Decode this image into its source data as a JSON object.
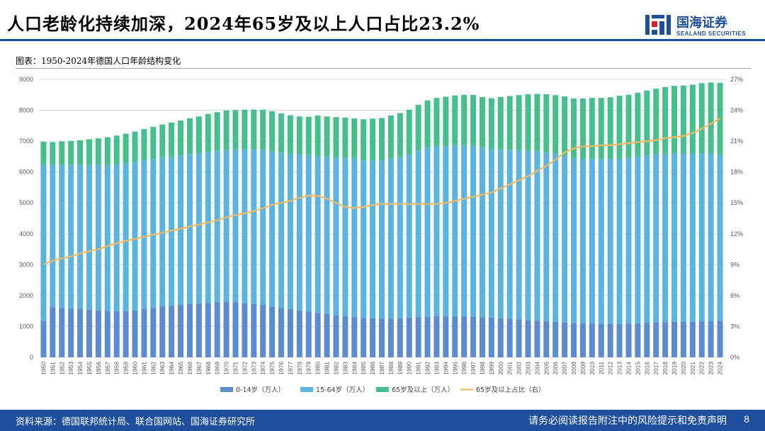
{
  "header": {
    "title": "人口老龄化持续加深，2024年65岁及以上人口占比23.2%",
    "logo_cn": "国海证券",
    "logo_en": "SEALAND SECURITIES"
  },
  "figure": {
    "caption": "图表：1950-2024年德国人口年龄结构变化"
  },
  "footer": {
    "source": "资料来源：德国联邦统计局、联合国网站、国海证券研究所",
    "disclaimer": "请务必阅读报告附注中的风险提示和免责声明",
    "page": "8"
  },
  "colors": {
    "brand": "#1d4f9c",
    "s0_14": "#5b8bd0",
    "s15_64": "#5ab4e2",
    "s65": "#45c08a",
    "line": "#f4b860"
  },
  "chart_data": {
    "type": "bar",
    "stacked": true,
    "title": "",
    "ylim": [
      0,
      9000
    ],
    "yticks": [
      0,
      1000,
      2000,
      3000,
      4000,
      5000,
      6000,
      7000,
      8000,
      9000
    ],
    "y2lim": [
      0,
      27
    ],
    "y2ticks": [
      "0%",
      "3%",
      "6%",
      "9%",
      "12%",
      "15%",
      "18%",
      "21%",
      "24%",
      "27%"
    ],
    "grid": true,
    "legend_position": "bottom",
    "categories": [
      "1950",
      "1951",
      "1952",
      "1953",
      "1954",
      "1955",
      "1956",
      "1957",
      "1958",
      "1959",
      "1960",
      "1961",
      "1962",
      "1963",
      "1964",
      "1965",
      "1966",
      "1967",
      "1968",
      "1969",
      "1970",
      "1971",
      "1972",
      "1973",
      "1974",
      "1975",
      "1976",
      "1977",
      "1978",
      "1979",
      "1980",
      "1981",
      "1982",
      "1983",
      "1984",
      "1985",
      "1986",
      "1987",
      "1988",
      "1989",
      "1990",
      "1991",
      "1992",
      "1993",
      "1994",
      "1995",
      "1996",
      "1997",
      "1998",
      "1999",
      "2000",
      "2001",
      "2002",
      "2003",
      "2004",
      "2005",
      "2006",
      "2007",
      "2008",
      "2009",
      "2010",
      "2011",
      "2012",
      "2013",
      "2014",
      "2015",
      "2016",
      "2017",
      "2018",
      "2019",
      "2020",
      "2021",
      "2022",
      "2023",
      "2024"
    ],
    "series": [
      {
        "name": "0-14岁（万人）",
        "axis": "left",
        "values": [
          1180,
          1620,
          1600,
          1580,
          1560,
          1540,
          1520,
          1510,
          1500,
          1500,
          1520,
          1560,
          1600,
          1650,
          1680,
          1700,
          1720,
          1740,
          1760,
          1780,
          1800,
          1780,
          1760,
          1730,
          1700,
          1650,
          1600,
          1560,
          1520,
          1480,
          1440,
          1400,
          1360,
          1330,
          1300,
          1280,
          1270,
          1260,
          1260,
          1270,
          1290,
          1300,
          1310,
          1320,
          1320,
          1320,
          1320,
          1310,
          1300,
          1290,
          1270,
          1250,
          1230,
          1210,
          1190,
          1170,
          1150,
          1130,
          1110,
          1100,
          1090,
          1080,
          1080,
          1080,
          1090,
          1100,
          1120,
          1130,
          1140,
          1150,
          1150,
          1150,
          1160,
          1170,
          1170
        ]
      },
      {
        "name": "15-64岁（万人）",
        "axis": "left",
        "values": [
          5100,
          4620,
          4620,
          4650,
          4670,
          4690,
          4720,
          4740,
          4760,
          4780,
          4800,
          4820,
          4820,
          4820,
          4820,
          4840,
          4860,
          4870,
          4900,
          4920,
          4930,
          4960,
          4980,
          5000,
          5020,
          5030,
          5030,
          5030,
          5050,
          5070,
          5090,
          5100,
          5110,
          5140,
          5130,
          5100,
          5110,
          5120,
          5180,
          5220,
          5280,
          5400,
          5480,
          5520,
          5520,
          5540,
          5540,
          5540,
          5500,
          5460,
          5460,
          5470,
          5480,
          5500,
          5500,
          5460,
          5420,
          5400,
          5340,
          5330,
          5330,
          5340,
          5340,
          5360,
          5370,
          5400,
          5420,
          5440,
          5450,
          5450,
          5440,
          5440,
          5450,
          5420,
          5380
        ]
      },
      {
        "name": "65岁及以上（万人）",
        "axis": "left",
        "values": [
          700,
          730,
          770,
          780,
          800,
          830,
          850,
          880,
          920,
          960,
          990,
          1010,
          1040,
          1070,
          1100,
          1130,
          1160,
          1190,
          1220,
          1240,
          1260,
          1270,
          1280,
          1290,
          1300,
          1290,
          1270,
          1250,
          1230,
          1240,
          1300,
          1300,
          1310,
          1290,
          1310,
          1330,
          1350,
          1370,
          1390,
          1420,
          1450,
          1480,
          1530,
          1560,
          1600,
          1620,
          1640,
          1650,
          1630,
          1640,
          1700,
          1740,
          1780,
          1810,
          1840,
          1890,
          1920,
          1920,
          1930,
          1950,
          1980,
          1980,
          2000,
          2030,
          2040,
          2070,
          2100,
          2130,
          2160,
          2190,
          2210,
          2240,
          2270,
          2310,
          2340
        ]
      },
      {
        "name": "65岁及以上占比（右）",
        "axis": "right",
        "type": "line",
        "values": [
          9.0,
          9.4,
          9.6,
          9.8,
          10.1,
          10.3,
          10.5,
          10.8,
          11.1,
          11.3,
          11.5,
          11.7,
          11.9,
          12.1,
          12.3,
          12.5,
          12.7,
          12.9,
          13.1,
          13.3,
          13.6,
          13.8,
          14.0,
          14.2,
          14.5,
          14.8,
          15.0,
          15.2,
          15.5,
          15.7,
          15.7,
          15.4,
          15.0,
          14.6,
          14.5,
          14.6,
          14.8,
          14.9,
          14.9,
          14.9,
          14.9,
          14.9,
          14.9,
          14.9,
          15.0,
          15.2,
          15.4,
          15.6,
          15.8,
          16.0,
          16.4,
          16.8,
          17.2,
          17.6,
          18.1,
          18.6,
          19.2,
          19.9,
          20.3,
          20.5,
          20.5,
          20.6,
          20.6,
          20.7,
          20.8,
          20.9,
          21.0,
          21.1,
          21.3,
          21.4,
          21.5,
          21.8,
          22.2,
          22.7,
          23.2
        ]
      }
    ]
  }
}
